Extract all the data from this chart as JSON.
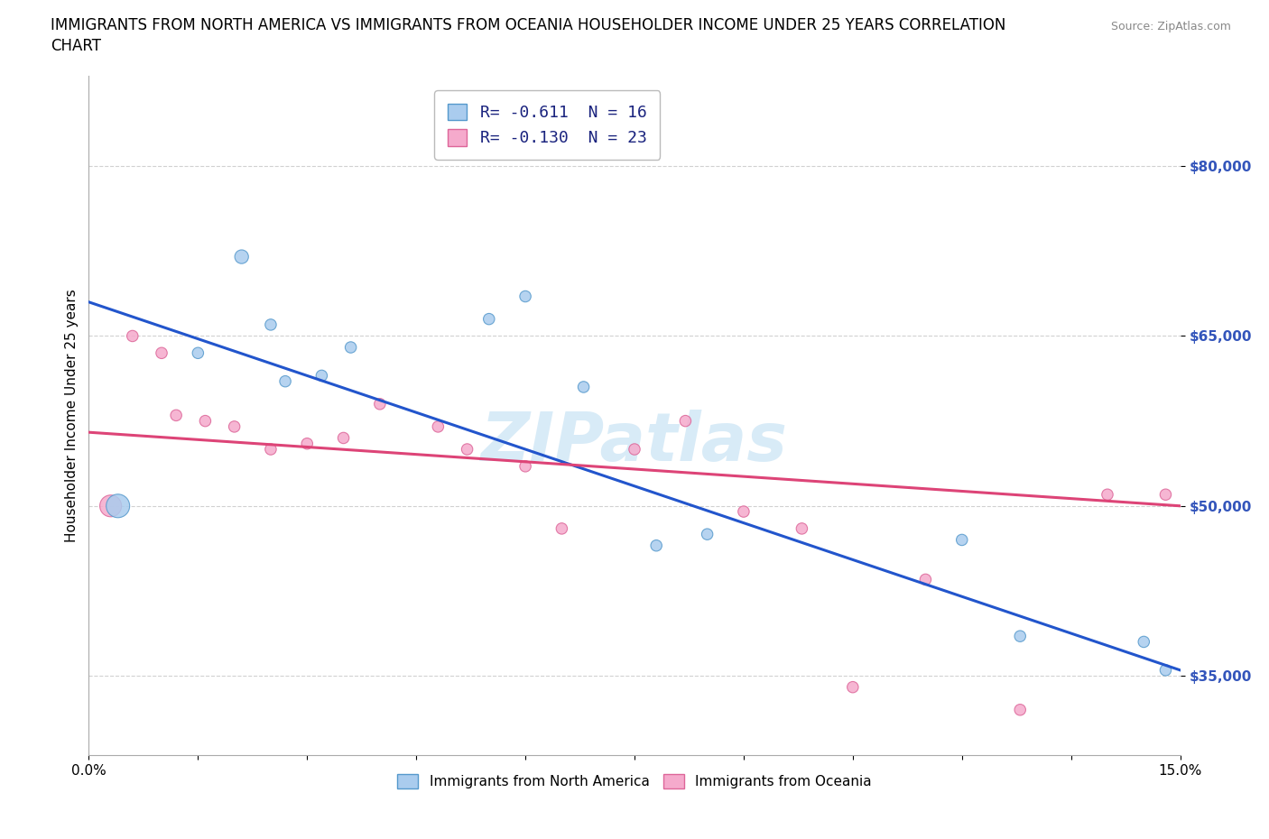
{
  "title_line1": "IMMIGRANTS FROM NORTH AMERICA VS IMMIGRANTS FROM OCEANIA HOUSEHOLDER INCOME UNDER 25 YEARS CORRELATION",
  "title_line2": "CHART",
  "source": "Source: ZipAtlas.com",
  "ylabel": "Householder Income Under 25 years",
  "xlim": [
    0.0,
    0.15
  ],
  "ylim": [
    28000,
    88000
  ],
  "xticks": [
    0.0,
    0.015,
    0.03,
    0.045,
    0.06,
    0.075,
    0.09,
    0.105,
    0.12,
    0.135,
    0.15
  ],
  "xticklabels": [
    "0.0%",
    "",
    "",
    "",
    "",
    "",
    "",
    "",
    "",
    "",
    "15.0%"
  ],
  "yticks": [
    35000,
    50000,
    65000,
    80000
  ],
  "yticklabels": [
    "$35,000",
    "$50,000",
    "$65,000",
    "$80,000"
  ],
  "north_america": {
    "x": [
      0.004,
      0.015,
      0.021,
      0.025,
      0.027,
      0.032,
      0.036,
      0.055,
      0.06,
      0.068,
      0.078,
      0.085,
      0.12,
      0.128,
      0.145,
      0.148
    ],
    "y": [
      50000,
      63500,
      72000,
      66000,
      61000,
      61500,
      64000,
      66500,
      68500,
      60500,
      46500,
      47500,
      47000,
      38500,
      38000,
      35500
    ],
    "sizes": [
      350,
      80,
      120,
      80,
      80,
      80,
      80,
      80,
      80,
      80,
      80,
      80,
      80,
      80,
      80,
      80
    ],
    "color": "#aaccee",
    "edge_color": "#5599cc",
    "R": -0.611,
    "N": 16,
    "trend_color": "#2255cc",
    "trend_x": [
      0.0,
      0.15
    ],
    "trend_y": [
      68000,
      35500
    ]
  },
  "oceania": {
    "x": [
      0.003,
      0.006,
      0.01,
      0.012,
      0.016,
      0.02,
      0.025,
      0.03,
      0.035,
      0.04,
      0.048,
      0.052,
      0.06,
      0.065,
      0.075,
      0.082,
      0.09,
      0.098,
      0.105,
      0.115,
      0.128,
      0.14,
      0.148
    ],
    "y": [
      50000,
      65000,
      63500,
      58000,
      57500,
      57000,
      55000,
      55500,
      56000,
      59000,
      57000,
      55000,
      53500,
      48000,
      55000,
      57500,
      49500,
      48000,
      34000,
      43500,
      32000,
      51000,
      51000
    ],
    "sizes": [
      300,
      80,
      80,
      80,
      80,
      80,
      80,
      80,
      80,
      80,
      80,
      80,
      80,
      80,
      80,
      80,
      80,
      80,
      80,
      80,
      80,
      80,
      80
    ],
    "color": "#f5aacc",
    "edge_color": "#dd6699",
    "R": -0.13,
    "N": 23,
    "trend_color": "#dd4477",
    "trend_x": [
      0.0,
      0.15
    ],
    "trend_y": [
      56500,
      50000
    ]
  },
  "watermark": "ZIPatlas",
  "background_color": "#ffffff",
  "grid_color": "#cccccc",
  "title_fontsize": 12,
  "axis_fontsize": 11,
  "tick_fontsize": 11
}
